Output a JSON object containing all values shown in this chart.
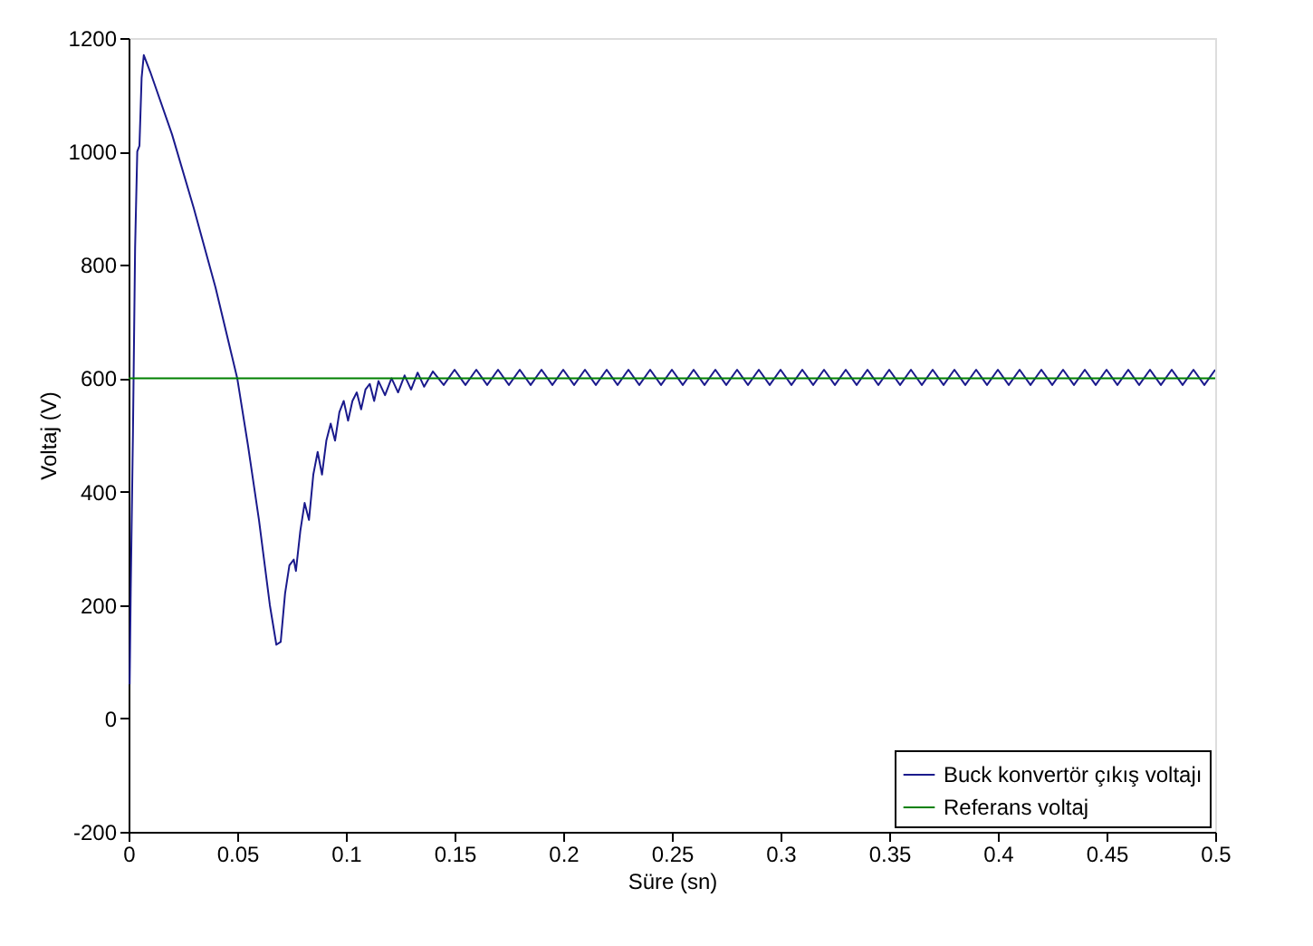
{
  "chart_data": {
    "type": "line",
    "xlabel": "Süre (sn)",
    "ylabel": "Voltaj (V)",
    "xlim": [
      0,
      0.5
    ],
    "xticks": [
      0,
      0.05,
      0.1,
      0.15,
      0.2,
      0.25,
      0.3,
      0.35,
      0.4,
      0.45,
      0.5
    ],
    "ylim": [
      -200,
      1200
    ],
    "yticks": [
      -200,
      0,
      200,
      400,
      600,
      800,
      1000,
      1200
    ],
    "grid": false,
    "legend": "bottom right",
    "line_style": "solid",
    "marker": "none",
    "series": [
      {
        "name": "Buck konvertör çıkış voltajı",
        "color": "#1a1a8c",
        "x": [
          0.0005,
          0.001,
          0.002,
          0.003,
          0.004,
          0.005,
          0.006,
          0.007,
          0.01,
          0.02,
          0.03,
          0.04,
          0.05,
          0.055,
          0.06,
          0.065,
          0.068,
          0.07,
          0.072,
          0.074,
          0.076,
          0.077,
          0.079,
          0.081,
          0.083,
          0.085,
          0.087,
          0.089,
          0.091,
          0.093,
          0.095,
          0.097,
          0.099,
          0.101,
          0.103,
          0.105,
          0.107,
          0.109,
          0.111,
          0.113,
          0.115,
          0.118,
          0.121,
          0.124,
          0.127,
          0.13,
          0.133,
          0.136,
          0.14,
          0.145,
          0.15,
          0.155,
          0.16,
          0.165,
          0.17,
          0.175,
          0.18,
          0.185,
          0.19,
          0.195,
          0.2,
          0.205,
          0.21,
          0.215,
          0.22,
          0.225,
          0.23,
          0.235,
          0.24,
          0.245,
          0.25,
          0.255,
          0.26,
          0.265,
          0.27,
          0.275,
          0.28,
          0.285,
          0.29,
          0.295,
          0.3,
          0.305,
          0.31,
          0.315,
          0.32,
          0.325,
          0.33,
          0.335,
          0.34,
          0.345,
          0.35,
          0.355,
          0.36,
          0.365,
          0.37,
          0.375,
          0.38,
          0.385,
          0.39,
          0.395,
          0.4,
          0.405,
          0.41,
          0.415,
          0.42,
          0.425,
          0.43,
          0.435,
          0.44,
          0.445,
          0.45,
          0.455,
          0.46,
          0.465,
          0.47,
          0.475,
          0.48,
          0.485,
          0.49,
          0.495,
          0.5
        ],
        "values": [
          60,
          230,
          500,
          830,
          1000,
          1010,
          1130,
          1170,
          1140,
          1030,
          900,
          760,
          600,
          480,
          350,
          200,
          130,
          135,
          220,
          270,
          280,
          260,
          330,
          380,
          350,
          430,
          470,
          430,
          490,
          520,
          490,
          540,
          560,
          525,
          560,
          575,
          545,
          580,
          590,
          560,
          595,
          570,
          600,
          575,
          605,
          580,
          610,
          585,
          612,
          588,
          615,
          588,
          615,
          588,
          615,
          588,
          615,
          588,
          615,
          588,
          615,
          588,
          615,
          588,
          615,
          588,
          615,
          588,
          615,
          588,
          615,
          588,
          615,
          588,
          615,
          588,
          615,
          588,
          615,
          588,
          615,
          588,
          615,
          588,
          615,
          588,
          615,
          588,
          615,
          588,
          615,
          588,
          615,
          588,
          615,
          588,
          615,
          588,
          615,
          588,
          615,
          588,
          615,
          588,
          615,
          588,
          615,
          588,
          615,
          588,
          615,
          588,
          615,
          588,
          615,
          588,
          615,
          588,
          615,
          588,
          615
        ]
      },
      {
        "name": "Referans voltaj",
        "color": "#008000",
        "x": [
          0,
          0.5
        ],
        "values": [
          600,
          600
        ]
      }
    ]
  }
}
